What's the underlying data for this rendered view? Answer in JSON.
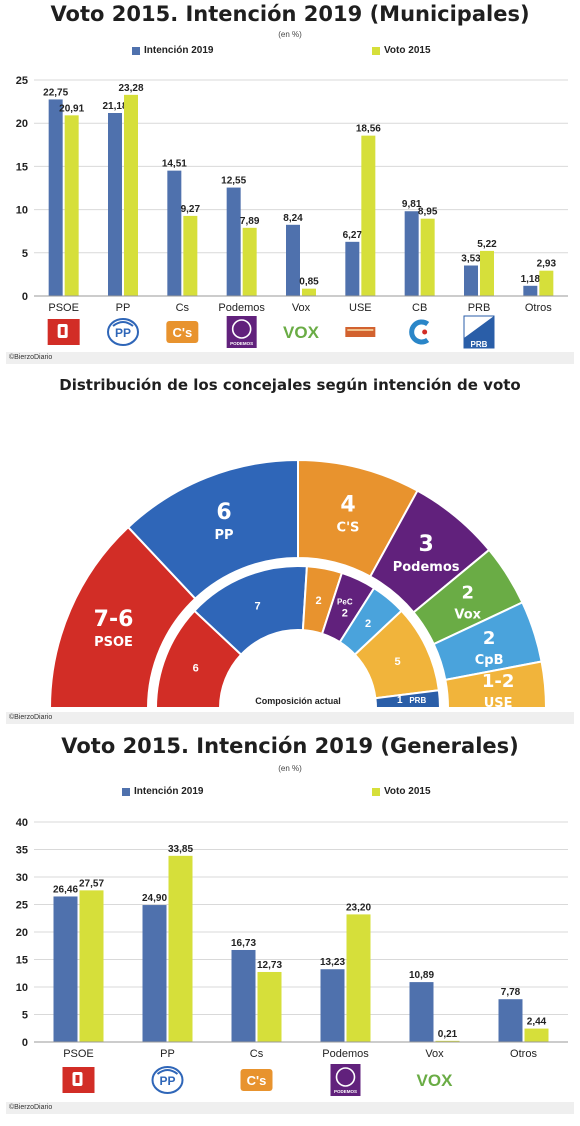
{
  "colors": {
    "intencion": "#4f71ad",
    "voto": "#d6df3a",
    "psoe": "#d22d26",
    "pp": "#2f66b8",
    "cs": "#e8932e",
    "podemos": "#61217c",
    "vox": "#6aac45",
    "cpb": "#4aa3dc",
    "use": "#f1b43b",
    "prb": "#2a5ea8",
    "pec": "#61217c"
  },
  "credit": "©BierzoDiario",
  "chart_data": [
    {
      "type": "bar",
      "title": "Voto 2015. Intención 2019 (Municipales)",
      "subtitle": "(en %)",
      "categories": [
        "PSOE",
        "PP",
        "Cs",
        "Podemos",
        "Vox",
        "USE",
        "CB",
        "PRB",
        "Otros"
      ],
      "series": [
        {
          "name": "Intención 2019",
          "values": [
            22.75,
            21.18,
            14.51,
            12.55,
            8.24,
            6.27,
            9.81,
            3.53,
            1.18
          ],
          "labels": [
            "22,75",
            "21,18",
            "14,51",
            "12,55",
            "8,24",
            "6,27",
            "9,81",
            "3,53",
            "1,18"
          ]
        },
        {
          "name": "Voto 2015",
          "values": [
            20.91,
            23.28,
            9.27,
            7.89,
            0.85,
            18.56,
            8.95,
            5.22,
            2.93
          ],
          "labels": [
            "20,91",
            "23,28",
            "9,27",
            "7,89",
            "0,85",
            "18,56",
            "8,95",
            "5,22",
            "2,93"
          ]
        }
      ],
      "ylim": [
        0,
        25
      ],
      "yticks": [
        0,
        5,
        10,
        15,
        20,
        25
      ],
      "grid": true,
      "legend": "top"
    },
    {
      "type": "pie",
      "title": "Distribución de los concejales según intención de voto",
      "outer": {
        "segments": [
          {
            "party": "PSOE",
            "value": 6.5,
            "label": "7-6"
          },
          {
            "party": "PP",
            "value": 6,
            "label": "6"
          },
          {
            "party": "C'S",
            "value": 4,
            "label": "4"
          },
          {
            "party": "Podemos",
            "value": 3,
            "label": "3"
          },
          {
            "party": "Vox",
            "value": 2,
            "label": "2"
          },
          {
            "party": "CpB",
            "value": 2,
            "label": "2"
          },
          {
            "party": "USE",
            "value": 1.5,
            "label": "1-2"
          }
        ]
      },
      "inner": {
        "caption": "Composición actual",
        "segments": [
          {
            "party": "PSOE",
            "value": 6,
            "label": "6"
          },
          {
            "party": "PP",
            "value": 7,
            "label": "7"
          },
          {
            "party": "C'S",
            "value": 2,
            "label": "2"
          },
          {
            "party": "PeC",
            "value": 2,
            "label": "2"
          },
          {
            "party": "CB",
            "value": 2,
            "label": "2"
          },
          {
            "party": "USE",
            "value": 5,
            "label": "5"
          },
          {
            "party": "PRB",
            "value": 1,
            "label": "1"
          }
        ]
      }
    },
    {
      "type": "bar",
      "title": "Voto 2015. Intención 2019 (Generales)",
      "subtitle": "(en %)",
      "categories": [
        "PSOE",
        "PP",
        "Cs",
        "Podemos",
        "Vox",
        "Otros"
      ],
      "series": [
        {
          "name": "Intención 2019",
          "values": [
            26.46,
            24.9,
            16.73,
            13.23,
            10.89,
            7.78
          ],
          "labels": [
            "26,46",
            "24,90",
            "16,73",
            "13,23",
            "10,89",
            "7,78"
          ]
        },
        {
          "name": "Voto 2015",
          "values": [
            27.57,
            33.85,
            12.73,
            23.2,
            0.21,
            2.44
          ],
          "labels": [
            "27,57",
            "33,85",
            "12,73",
            "23,20",
            "0,21",
            "2,44"
          ]
        }
      ],
      "ylim": [
        0,
        40
      ],
      "yticks": [
        0,
        5,
        10,
        15,
        20,
        25,
        30,
        35,
        40
      ],
      "grid": true,
      "legend": "top"
    }
  ],
  "logos_top": [
    "psoe-logo",
    "pp-logo",
    "cs-logo",
    "podemos-logo",
    "vox-logo",
    "use-logo",
    "cb-logo",
    "prb-logo"
  ],
  "logos_bottom": [
    "psoe-logo",
    "pp-logo",
    "cs-logo",
    "podemos-logo",
    "vox-logo"
  ],
  "logo_text": {
    "pp": "PP",
    "cs": "C's",
    "podemos": "PODEMOS",
    "vox": "VOX",
    "prb": "PRB"
  }
}
